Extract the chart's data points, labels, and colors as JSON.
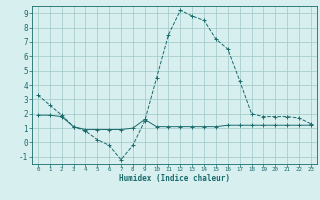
{
  "xlabel": "Humidex (Indice chaleur)",
  "x_values": [
    0,
    1,
    2,
    3,
    4,
    5,
    6,
    7,
    8,
    9,
    10,
    11,
    12,
    13,
    14,
    15,
    16,
    17,
    18,
    19,
    20,
    21,
    22,
    23
  ],
  "curve1": [
    3.3,
    2.6,
    1.9,
    1.1,
    0.8,
    0.2,
    -0.2,
    -1.2,
    -0.2,
    1.5,
    4.5,
    7.5,
    9.2,
    8.8,
    8.5,
    7.2,
    6.5,
    4.3,
    2.0,
    1.8,
    1.8,
    1.8,
    1.7,
    1.3
  ],
  "curve2": [
    1.9,
    1.9,
    1.8,
    1.1,
    0.9,
    0.9,
    0.9,
    0.9,
    1.0,
    1.6,
    1.1,
    1.1,
    1.1,
    1.1,
    1.1,
    1.1,
    1.2,
    1.2,
    1.2,
    1.2,
    1.2,
    1.2,
    1.2,
    1.2
  ],
  "line_color": "#1a6b6b",
  "bg_color": "#d8eff0",
  "grid_color": "#a0c8c8",
  "ylim": [
    -1.5,
    9.5
  ],
  "yticks": [
    -1,
    0,
    1,
    2,
    3,
    4,
    5,
    6,
    7,
    8,
    9
  ],
  "xlim": [
    -0.5,
    23.5
  ]
}
